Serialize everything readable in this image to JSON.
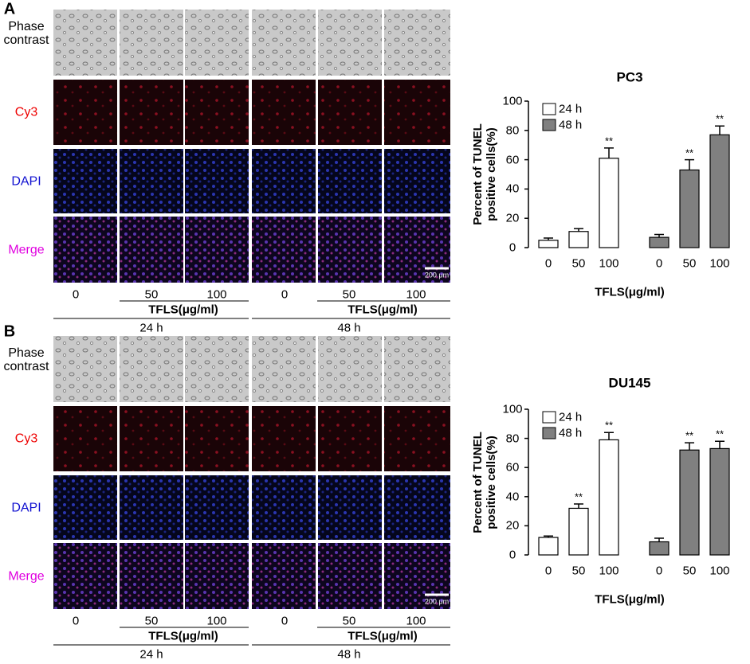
{
  "panels": [
    {
      "label": "A",
      "row_labels": [
        "Phase contrast",
        "Cy3",
        "DAPI",
        "Merge"
      ],
      "doses": [
        "0",
        "50",
        "100",
        "0",
        "50",
        "100"
      ],
      "treatment": [
        "TFLS(μg/ml)",
        "TFLS(μg/ml)"
      ],
      "times": [
        "24 h",
        "48 h"
      ],
      "scale_bar": "200 μm"
    },
    {
      "label": "B",
      "row_labels": [
        "Phase contrast",
        "Cy3",
        "DAPI",
        "Merge"
      ],
      "doses": [
        "0",
        "50",
        "100",
        "0",
        "50",
        "100"
      ],
      "treatment": [
        "TFLS(μg/ml)",
        "TFLS(μg/ml)"
      ],
      "times": [
        "24 h",
        "48 h"
      ],
      "scale_bar": "200 μm"
    }
  ],
  "chart_data": [
    {
      "type": "bar",
      "title": "PC3",
      "y_label": "Percent of TUNEL positive cells(%)",
      "x_label": "TFLS(μg/ml)",
      "categories": [
        "0",
        "50",
        "100",
        "0",
        "50",
        "100"
      ],
      "series": [
        {
          "name": "24 h",
          "color": "#ffffff",
          "values": [
            5,
            11,
            61,
            null,
            null,
            null
          ],
          "errors": [
            1.5,
            2,
            7,
            null,
            null,
            null
          ],
          "annotations": [
            null,
            null,
            "**",
            null,
            null,
            null
          ]
        },
        {
          "name": "48 h",
          "color": "#808080",
          "values": [
            null,
            null,
            null,
            7,
            53,
            77
          ],
          "errors": [
            null,
            null,
            null,
            2,
            7,
            6
          ],
          "annotations": [
            null,
            null,
            null,
            null,
            "**",
            "**"
          ]
        }
      ],
      "ylim": [
        0,
        100
      ],
      "yticks": [
        0,
        20,
        40,
        60,
        80,
        100
      ],
      "legend": "upper-left"
    },
    {
      "type": "bar",
      "title": "DU145",
      "y_label": "Percent of TUNEL positive cells(%)",
      "x_label": "TFLS(μg/ml)",
      "categories": [
        "0",
        "50",
        "100",
        "0",
        "50",
        "100"
      ],
      "series": [
        {
          "name": "24 h",
          "color": "#ffffff",
          "values": [
            12,
            32,
            79,
            null,
            null,
            null
          ],
          "errors": [
            1,
            3,
            5,
            null,
            null,
            null
          ],
          "annotations": [
            null,
            "**",
            "**",
            null,
            null,
            null
          ]
        },
        {
          "name": "48 h",
          "color": "#808080",
          "values": [
            null,
            null,
            null,
            9,
            72,
            73
          ],
          "errors": [
            null,
            null,
            null,
            2.5,
            5,
            5
          ],
          "annotations": [
            null,
            null,
            null,
            null,
            "**",
            "**"
          ]
        }
      ],
      "ylim": [
        0,
        100
      ],
      "yticks": [
        0,
        20,
        40,
        60,
        80,
        100
      ],
      "legend": "upper-left"
    }
  ]
}
